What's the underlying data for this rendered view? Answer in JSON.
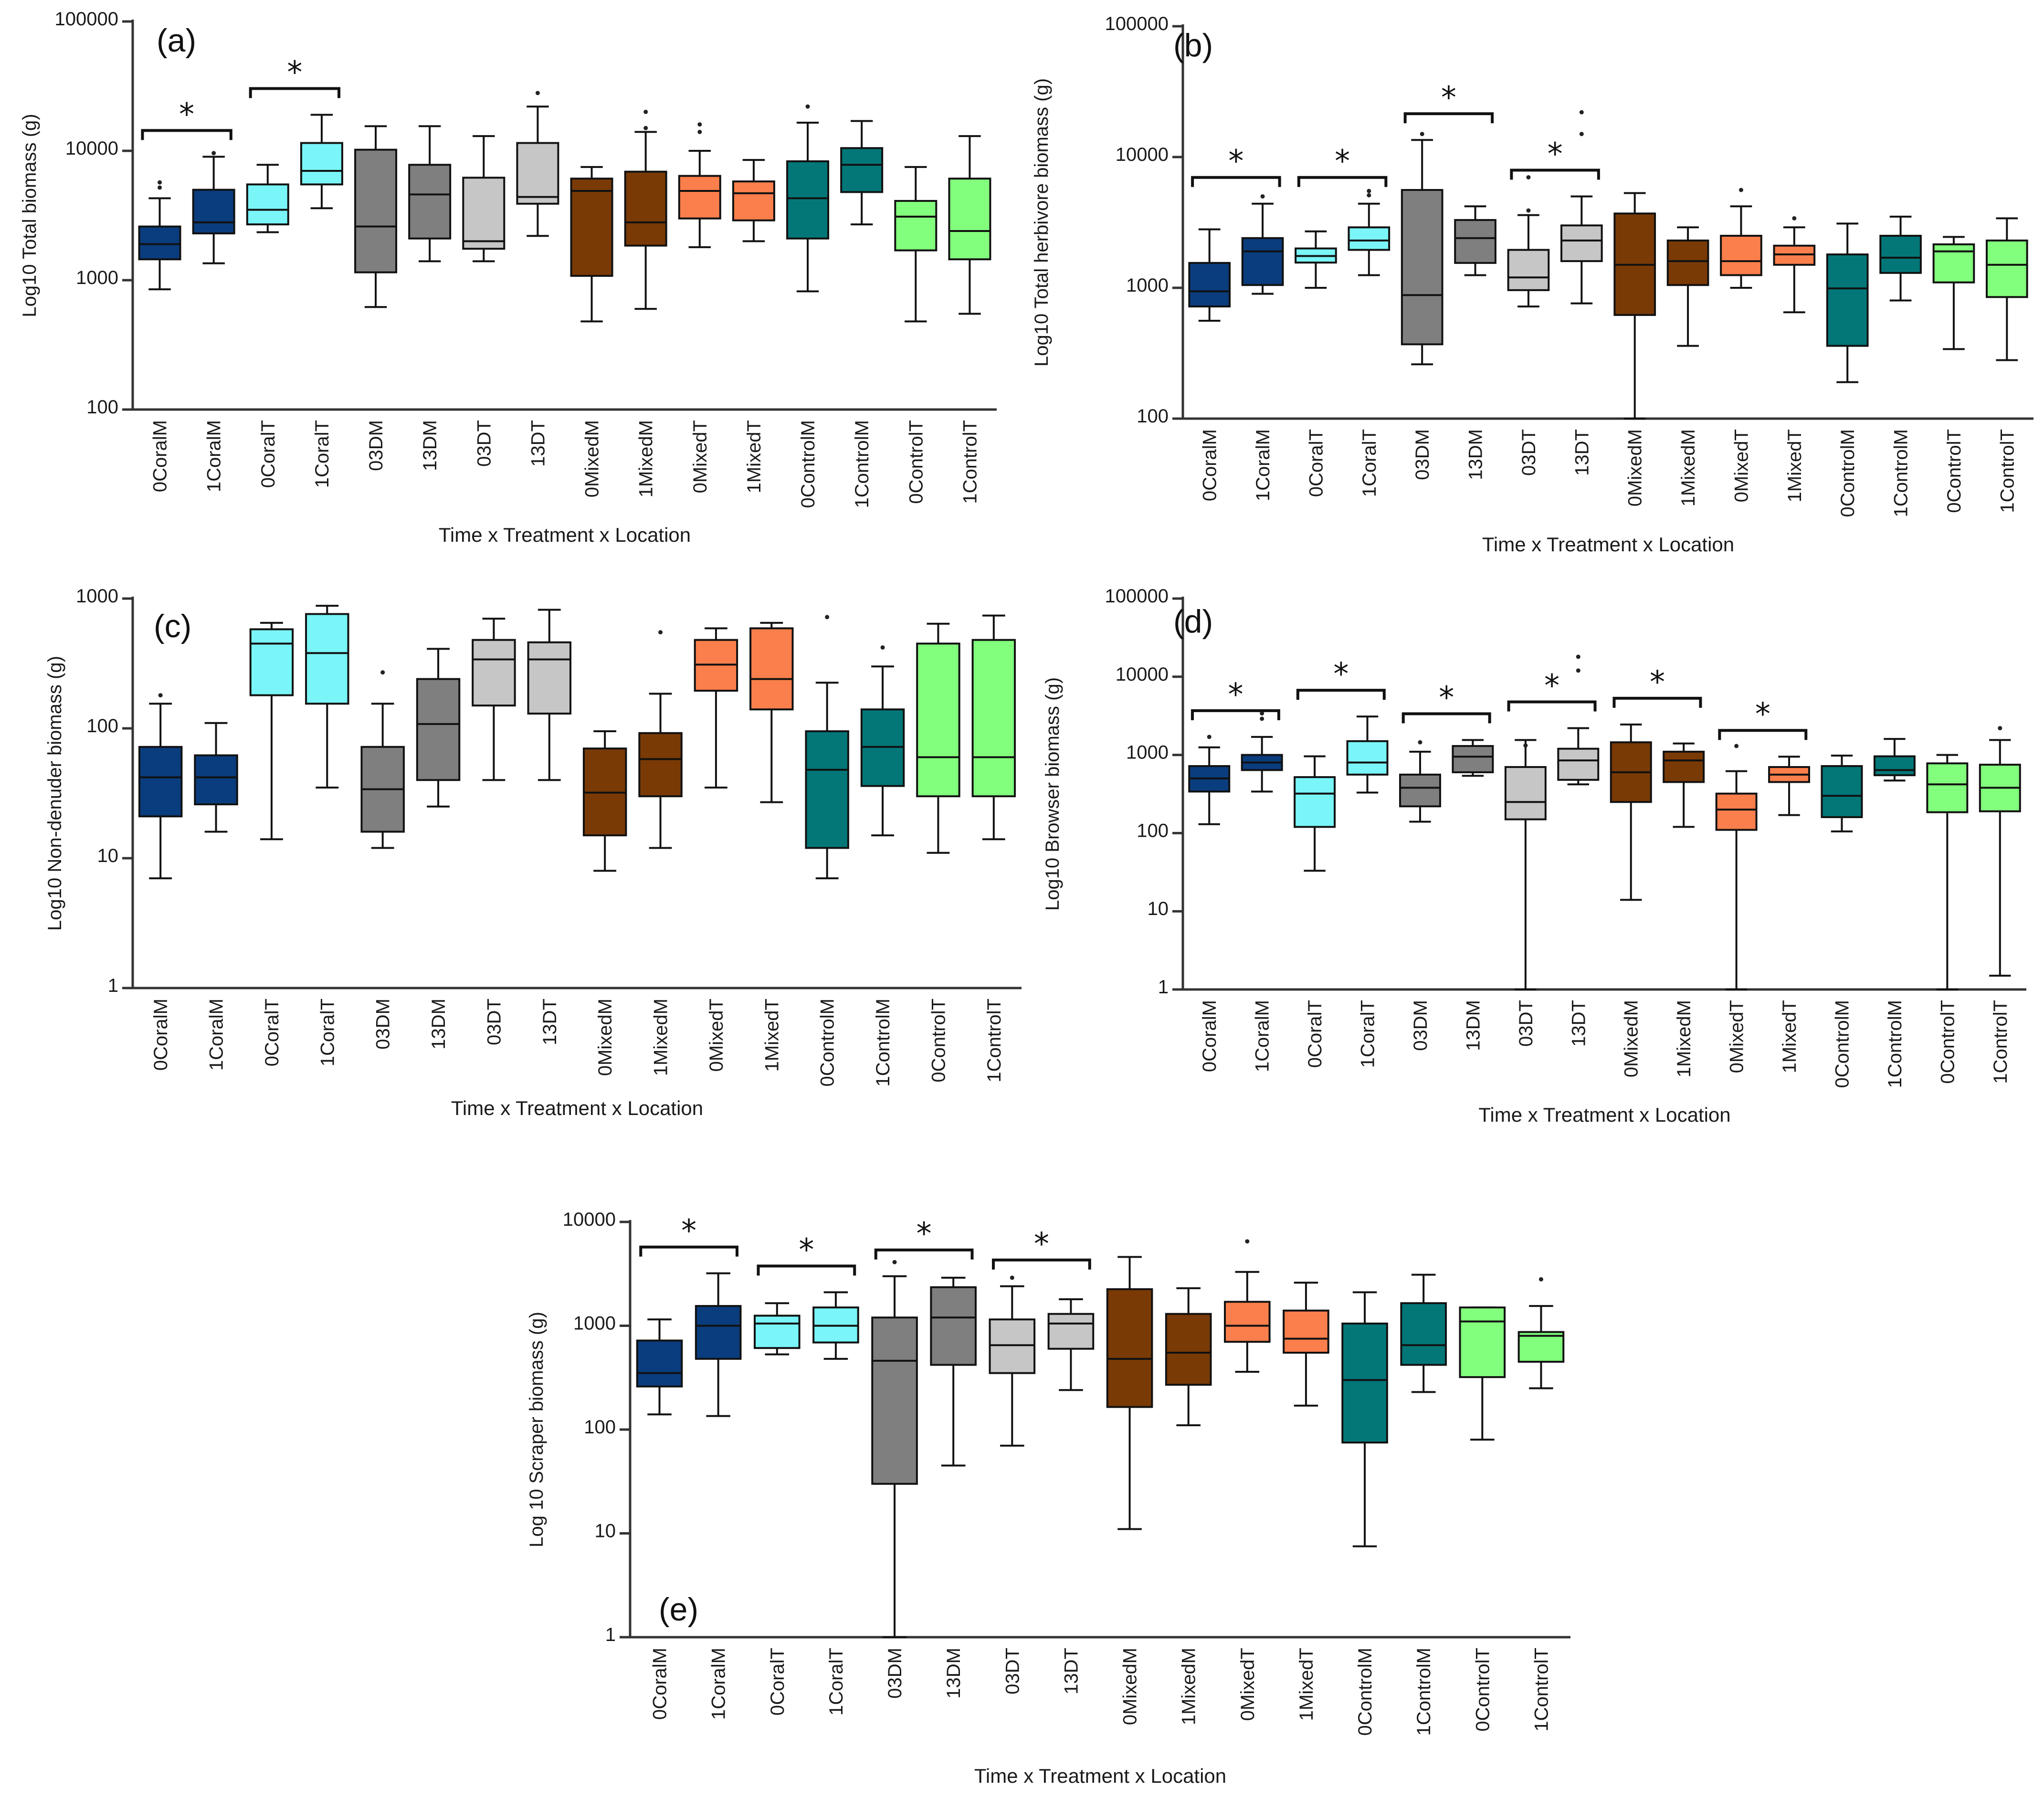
{
  "chart_data": [
    {
      "type": "box",
      "panel": "(a)",
      "ylabel": "Log10 Total biomass (g)",
      "xlabel": "Time x Treatment x Location",
      "yscale": "log",
      "ylim": [
        100,
        100000
      ],
      "yticks": [
        100,
        1000,
        10000,
        100000
      ],
      "ytick_labels": [
        "100",
        "1000",
        "10000",
        "100000"
      ],
      "categories": [
        "0CoralM",
        "1CoralM",
        "0CoralT",
        "1CoralT",
        "03DM",
        "13DM",
        "03DT",
        "13DT",
        "0MixedM",
        "1MixedM",
        "0MixedT",
        "1MixedT",
        "0ControlM",
        "1ControlM",
        "0ControlT",
        "1ControlT"
      ],
      "boxes": [
        {
          "min": 850,
          "q1": 1450,
          "median": 1900,
          "q3": 2600,
          "max": 4300
        },
        {
          "min": 1350,
          "q1": 2300,
          "median": 2800,
          "q3": 5000,
          "max": 9000
        },
        {
          "min": 2350,
          "q1": 2700,
          "median": 3500,
          "q3": 5500,
          "max": 7800
        },
        {
          "min": 3600,
          "q1": 5500,
          "median": 7000,
          "q3": 11500,
          "max": 19000
        },
        {
          "min": 620,
          "q1": 1150,
          "median": 2600,
          "q3": 10200,
          "max": 15500
        },
        {
          "min": 1400,
          "q1": 2100,
          "median": 4600,
          "q3": 7800,
          "max": 15500
        },
        {
          "min": 1400,
          "q1": 1750,
          "median": 2000,
          "q3": 6200,
          "max": 13000
        },
        {
          "min": 2200,
          "q1": 3900,
          "median": 4400,
          "q3": 11500,
          "max": 22000
        },
        {
          "min": 480,
          "q1": 1080,
          "median": 4900,
          "q3": 6100,
          "max": 7500
        },
        {
          "min": 600,
          "q1": 1850,
          "median": 2800,
          "q3": 6900,
          "max": 14000
        },
        {
          "min": 1800,
          "q1": 3000,
          "median": 4900,
          "q3": 6400,
          "max": 10000
        },
        {
          "min": 2000,
          "q1": 2900,
          "median": 4700,
          "q3": 5800,
          "max": 8500
        },
        {
          "min": 820,
          "q1": 2100,
          "median": 4300,
          "q3": 8300,
          "max": 16500
        },
        {
          "min": 2700,
          "q1": 4800,
          "median": 7800,
          "q3": 10500,
          "max": 17000
        },
        {
          "min": 480,
          "q1": 1700,
          "median": 3100,
          "q3": 4100,
          "max": 7500
        },
        {
          "min": 550,
          "q1": 1450,
          "median": 2400,
          "q3": 6100,
          "max": 13000
        }
      ],
      "outliers": [
        [
          0,
          5200
        ],
        [
          0,
          5700
        ],
        [
          1,
          9600
        ],
        [
          7,
          28000
        ],
        [
          9,
          20000
        ],
        [
          9,
          15000
        ],
        [
          10,
          14000
        ],
        [
          10,
          16000
        ],
        [
          12,
          22000
        ]
      ],
      "significance": [
        [
          0,
          1
        ],
        [
          2,
          3
        ]
      ],
      "significance_label": "*"
    },
    {
      "type": "box",
      "panel": "(b)",
      "ylabel": "Log10 Total herbivore biomass (g)",
      "xlabel": "Time x Treatment x Location",
      "yscale": "log",
      "ylim": [
        100,
        100000
      ],
      "yticks": [
        100,
        1000,
        10000,
        100000
      ],
      "ytick_labels": [
        "100",
        "1000",
        "10000",
        "100000"
      ],
      "categories": [
        "0CoralM",
        "1CoralM",
        "0CoralT",
        "1CoralT",
        "03DM",
        "13DM",
        "03DT",
        "13DT",
        "0MixedM",
        "1MixedM",
        "0MixedT",
        "1MixedT",
        "0ControlM",
        "1ControlM",
        "0ControlT",
        "1ControlT"
      ],
      "boxes": [
        {
          "min": 560,
          "q1": 720,
          "median": 940,
          "q3": 1550,
          "max": 2800
        },
        {
          "min": 900,
          "q1": 1050,
          "median": 1900,
          "q3": 2400,
          "max": 4400
        },
        {
          "min": 1000,
          "q1": 1560,
          "median": 1750,
          "q3": 2000,
          "max": 2700
        },
        {
          "min": 1250,
          "q1": 1950,
          "median": 2300,
          "q3": 2900,
          "max": 4400
        },
        {
          "min": 260,
          "q1": 370,
          "median": 880,
          "q3": 5600,
          "max": 13500
        },
        {
          "min": 1250,
          "q1": 1550,
          "median": 2400,
          "q3": 3300,
          "max": 4200
        },
        {
          "min": 720,
          "q1": 960,
          "median": 1200,
          "q3": 1950,
          "max": 3600
        },
        {
          "min": 760,
          "q1": 1600,
          "median": 2300,
          "q3": 3000,
          "max": 5000
        },
        {
          "min": 100,
          "q1": 620,
          "median": 1500,
          "q3": 3700,
          "max": 5300
        },
        {
          "min": 360,
          "q1": 1050,
          "median": 1600,
          "q3": 2300,
          "max": 2900
        },
        {
          "min": 1000,
          "q1": 1250,
          "median": 1600,
          "q3": 2500,
          "max": 4200
        },
        {
          "min": 650,
          "q1": 1500,
          "median": 1800,
          "q3": 2100,
          "max": 2900
        },
        {
          "min": 190,
          "q1": 360,
          "median": 990,
          "q3": 1800,
          "max": 3100
        },
        {
          "min": 800,
          "q1": 1300,
          "median": 1700,
          "q3": 2500,
          "max": 3500
        },
        {
          "min": 340,
          "q1": 1100,
          "median": 1900,
          "q3": 2150,
          "max": 2450
        },
        {
          "min": 280,
          "q1": 850,
          "median": 1500,
          "q3": 2300,
          "max": 3400
        }
      ],
      "outliers": [
        [
          1,
          5000
        ],
        [
          3,
          5500
        ],
        [
          3,
          5100
        ],
        [
          4,
          15000
        ],
        [
          6,
          7000
        ],
        [
          6,
          3900
        ],
        [
          7,
          22000
        ],
        [
          7,
          15000
        ],
        [
          10,
          5600
        ],
        [
          11,
          3400
        ]
      ],
      "significance": [
        [
          0,
          1
        ],
        [
          2,
          3
        ],
        [
          4,
          5
        ],
        [
          6,
          7
        ]
      ],
      "significance_label": "*"
    },
    {
      "type": "box",
      "panel": "(c)",
      "ylabel": "Log10 Non-denuder biomass (g)",
      "xlabel": "Time x Treatment x Location",
      "yscale": "log",
      "ylim": [
        1,
        1000
      ],
      "yticks": [
        1,
        10,
        100,
        1000
      ],
      "ytick_labels": [
        "1",
        "10",
        "100",
        "1000"
      ],
      "categories": [
        "0CoralM",
        "1CoralM",
        "0CoralT",
        "1CoralT",
        "03DM",
        "13DM",
        "03DT",
        "13DT",
        "0MixedM",
        "1MixedM",
        "0MixedT",
        "1MixedT",
        "0ControlM",
        "1ControlM",
        "0ControlT",
        "1ControlT"
      ],
      "boxes": [
        {
          "min": 7,
          "q1": 21,
          "median": 42,
          "q3": 72,
          "max": 155
        },
        {
          "min": 16,
          "q1": 26,
          "median": 42,
          "q3": 62,
          "max": 110
        },
        {
          "min": 14,
          "q1": 180,
          "median": 450,
          "q3": 580,
          "max": 650
        },
        {
          "min": 35,
          "q1": 155,
          "median": 380,
          "q3": 760,
          "max": 880
        },
        {
          "min": 12,
          "q1": 16,
          "median": 34,
          "q3": 72,
          "max": 155
        },
        {
          "min": 25,
          "q1": 40,
          "median": 108,
          "q3": 240,
          "max": 410
        },
        {
          "min": 40,
          "q1": 150,
          "median": 340,
          "q3": 480,
          "max": 700
        },
        {
          "min": 40,
          "q1": 130,
          "median": 340,
          "q3": 460,
          "max": 820
        },
        {
          "min": 8,
          "q1": 15,
          "median": 32,
          "q3": 70,
          "max": 95
        },
        {
          "min": 12,
          "q1": 30,
          "median": 58,
          "q3": 92,
          "max": 185
        },
        {
          "min": 35,
          "q1": 195,
          "median": 310,
          "q3": 480,
          "max": 590
        },
        {
          "min": 27,
          "q1": 140,
          "median": 240,
          "q3": 590,
          "max": 650
        },
        {
          "min": 7,
          "q1": 12,
          "median": 48,
          "q3": 95,
          "max": 225
        },
        {
          "min": 15,
          "q1": 36,
          "median": 72,
          "q3": 140,
          "max": 300
        },
        {
          "min": 11,
          "q1": 30,
          "median": 60,
          "q3": 450,
          "max": 640
        },
        {
          "min": 14,
          "q1": 30,
          "median": 60,
          "q3": 480,
          "max": 740
        }
      ],
      "outliers": [
        [
          0,
          180
        ],
        [
          4,
          270
        ],
        [
          9,
          550
        ],
        [
          12,
          720
        ],
        [
          13,
          420
        ]
      ],
      "significance": [],
      "significance_label": "*"
    },
    {
      "type": "box",
      "panel": "(d)",
      "ylabel": "Log10 Browser biomass (g)",
      "xlabel": "Time x Treatment x Location",
      "yscale": "log",
      "ylim": [
        1,
        100000
      ],
      "yticks": [
        1,
        10,
        100,
        1000,
        10000,
        100000
      ],
      "ytick_labels": [
        "1",
        "10",
        "100",
        "1000",
        "10000",
        "100000"
      ],
      "categories": [
        "0CoralM",
        "1CoralM",
        "0CoralT",
        "1CoralT",
        "03DM",
        "13DM",
        "03DT",
        "13DT",
        "0MixedM",
        "1MixedM",
        "0MixedT",
        "1MixedT",
        "0ControlM",
        "1ControlM",
        "0ControlT",
        "1ControlT"
      ],
      "boxes": [
        {
          "min": 130,
          "q1": 340,
          "median": 500,
          "q3": 720,
          "max": 1250
        },
        {
          "min": 340,
          "q1": 640,
          "median": 800,
          "q3": 1000,
          "max": 1700
        },
        {
          "min": 33,
          "q1": 120,
          "median": 320,
          "q3": 520,
          "max": 960
        },
        {
          "min": 330,
          "q1": 560,
          "median": 800,
          "q3": 1500,
          "max": 3100
        },
        {
          "min": 140,
          "q1": 220,
          "median": 380,
          "q3": 560,
          "max": 1100
        },
        {
          "min": 540,
          "q1": 600,
          "median": 950,
          "q3": 1300,
          "max": 1550
        },
        {
          "min": 1,
          "q1": 150,
          "median": 250,
          "q3": 700,
          "max": 1550
        },
        {
          "min": 420,
          "q1": 480,
          "median": 850,
          "q3": 1200,
          "max": 2200
        },
        {
          "min": 14,
          "q1": 250,
          "median": 600,
          "q3": 1450,
          "max": 2450
        },
        {
          "min": 120,
          "q1": 450,
          "median": 850,
          "q3": 1100,
          "max": 1400
        },
        {
          "min": 1,
          "q1": 110,
          "median": 200,
          "q3": 320,
          "max": 620
        },
        {
          "min": 170,
          "q1": 450,
          "median": 560,
          "q3": 700,
          "max": 950
        },
        {
          "min": 105,
          "q1": 160,
          "median": 300,
          "q3": 720,
          "max": 980
        },
        {
          "min": 470,
          "q1": 550,
          "median": 640,
          "q3": 960,
          "max": 1600
        },
        {
          "min": 1,
          "q1": 185,
          "median": 420,
          "q3": 780,
          "max": 1000
        },
        {
          "min": 1.5,
          "q1": 190,
          "median": 380,
          "q3": 750,
          "max": 1550
        }
      ],
      "outliers": [
        [
          0,
          1700
        ],
        [
          1,
          2900
        ],
        [
          1,
          3400
        ],
        [
          4,
          1450
        ],
        [
          6,
          1320
        ],
        [
          7,
          12000
        ],
        [
          7,
          18000
        ],
        [
          10,
          1300
        ],
        [
          15,
          2200
        ]
      ],
      "significance": [
        [
          0,
          1
        ],
        [
          2,
          3
        ],
        [
          4,
          5
        ],
        [
          6,
          7
        ],
        [
          8,
          9
        ],
        [
          10,
          11
        ]
      ],
      "significance_label": "*"
    },
    {
      "type": "box",
      "panel": "(e)",
      "ylabel": "Log 10 Scraper biomass (g)",
      "xlabel": "Time x Treatment x Location",
      "yscale": "log",
      "ylim": [
        1,
        10000
      ],
      "yticks": [
        1,
        10,
        100,
        1000,
        10000
      ],
      "ytick_labels": [
        "1",
        "10",
        "100",
        "1000",
        "10000"
      ],
      "categories": [
        "0CoralM",
        "1CoralM",
        "0CoralT",
        "1CoralT",
        "03DM",
        "13DM",
        "03DT",
        "13DT",
        "0MixedM",
        "1MixedM",
        "0MixedT",
        "1MixedT",
        "0ControlM",
        "1ControlM",
        "0ControlT",
        "1ControlT"
      ],
      "boxes": [
        {
          "min": 140,
          "q1": 260,
          "median": 350,
          "q3": 720,
          "max": 1150
        },
        {
          "min": 135,
          "q1": 480,
          "median": 1000,
          "q3": 1550,
          "max": 3200
        },
        {
          "min": 530,
          "q1": 610,
          "median": 1050,
          "q3": 1250,
          "max": 1650
        },
        {
          "min": 480,
          "q1": 690,
          "median": 1000,
          "q3": 1500,
          "max": 2100
        },
        {
          "min": 1,
          "q1": 30,
          "median": 460,
          "q3": 1200,
          "max": 3000
        },
        {
          "min": 45,
          "q1": 420,
          "median": 1200,
          "q3": 2350,
          "max": 2900
        },
        {
          "min": 70,
          "q1": 350,
          "median": 650,
          "q3": 1150,
          "max": 2400
        },
        {
          "min": 240,
          "q1": 600,
          "median": 1050,
          "q3": 1300,
          "max": 1800
        },
        {
          "min": 11,
          "q1": 165,
          "median": 480,
          "q3": 2250,
          "max": 4600
        },
        {
          "min": 110,
          "q1": 270,
          "median": 550,
          "q3": 1300,
          "max": 2300
        },
        {
          "min": 360,
          "q1": 700,
          "median": 1000,
          "q3": 1700,
          "max": 3300
        },
        {
          "min": 170,
          "q1": 550,
          "median": 750,
          "q3": 1400,
          "max": 2600
        },
        {
          "min": 7.5,
          "q1": 75,
          "median": 300,
          "q3": 1050,
          "max": 2100
        },
        {
          "min": 230,
          "q1": 420,
          "median": 650,
          "q3": 1650,
          "max": 3100
        },
        {
          "min": 80,
          "q1": 320,
          "median": 1100,
          "q3": 1500,
          "max": 1500
        },
        {
          "min": 250,
          "q1": 450,
          "median": 800,
          "q3": 870,
          "max": 1550
        }
      ],
      "outliers": [
        [
          4,
          4100
        ],
        [
          6,
          2900
        ],
        [
          10,
          6500
        ],
        [
          15,
          2800
        ]
      ],
      "significance": [
        [
          0,
          1
        ],
        [
          2,
          3
        ],
        [
          4,
          5
        ],
        [
          6,
          7
        ]
      ],
      "significance_label": "*"
    }
  ],
  "colors": [
    "#0a3d7d",
    "#0a3d7d",
    "#7af5f8",
    "#7af5f8",
    "#7f7f7f",
    "#7f7f7f",
    "#c6c6c6",
    "#c6c6c6",
    "#7a3a05",
    "#7a3a05",
    "#fb7f4c",
    "#fb7f4c",
    "#037778",
    "#037778",
    "#82ff7c",
    "#82ff7c"
  ]
}
